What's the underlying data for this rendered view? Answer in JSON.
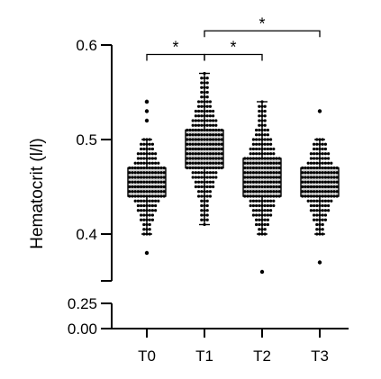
{
  "chart_data": {
    "type": "box",
    "ylabel": "Hematocrit (l/l)",
    "categories": [
      "T0",
      "T1",
      "T2",
      "T3"
    ],
    "y_axis": {
      "segments": [
        {
          "range": [
            0.35,
            0.6
          ],
          "ticks": [
            {
              "value": 0.4,
              "label": "0.4"
            },
            {
              "value": 0.5,
              "label": "0.5"
            },
            {
              "value": 0.6,
              "label": "0.6"
            }
          ]
        },
        {
          "range": [
            0.0,
            0.25
          ],
          "ticks": [
            {
              "value": 0.0,
              "label": "0.00"
            },
            {
              "value": 0.25,
              "label": "0.25"
            }
          ]
        }
      ]
    },
    "grid": false,
    "series": [
      {
        "category": "T0",
        "min": 0.4,
        "q1": 0.44,
        "median": 0.45,
        "q3": 0.47,
        "max": 0.5,
        "outliers": [
          0.38,
          0.52,
          0.53,
          0.54,
          0.54
        ]
      },
      {
        "category": "T1",
        "min": 0.41,
        "q1": 0.47,
        "median": 0.49,
        "q3": 0.51,
        "max": 0.57,
        "outliers": []
      },
      {
        "category": "T2",
        "min": 0.4,
        "q1": 0.44,
        "median": 0.46,
        "q3": 0.48,
        "max": 0.54,
        "outliers": [
          0.36
        ]
      },
      {
        "category": "T3",
        "min": 0.4,
        "q1": 0.44,
        "median": 0.45,
        "q3": 0.47,
        "max": 0.5,
        "outliers": [
          0.37,
          0.53
        ]
      }
    ],
    "significance": [
      {
        "from": "T0",
        "to": "T1",
        "label": "*",
        "y": 0.59
      },
      {
        "from": "T1",
        "to": "T2",
        "label": "*",
        "y": 0.59
      },
      {
        "from": "T1",
        "to": "T3",
        "label": "*",
        "y": 0.615
      }
    ]
  }
}
